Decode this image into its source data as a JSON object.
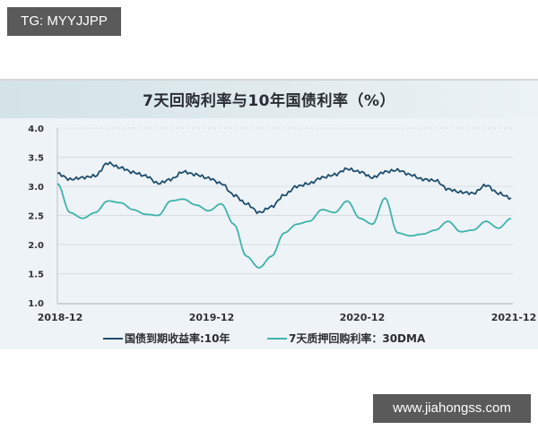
{
  "watermarks": {
    "top": "TG: MYYJJPP",
    "bottom": "www.jiahongss.com"
  },
  "colors": {
    "series_10y": "#1f4e6e",
    "series_7d": "#3fb3aa",
    "panel_bg": "#eef3f7",
    "gridline": "#d6dde3"
  },
  "chart_data": {
    "type": "line",
    "title": "7天回购利率与10年国债利率（%）",
    "xlabel": "",
    "ylabel": "",
    "ylim": [
      1.0,
      4.0
    ],
    "yticks": [
      "4.0",
      "3.5",
      "3.0",
      "2.5",
      "2.0",
      "1.5",
      "1.0"
    ],
    "xticks": [
      "2018-12",
      "2019-12",
      "2020-12",
      "2021-12"
    ],
    "grid": "horizontal",
    "legend_position": "bottom",
    "x": [
      "2018-12",
      "2019-01",
      "2019-02",
      "2019-03",
      "2019-04",
      "2019-05",
      "2019-06",
      "2019-07",
      "2019-08",
      "2019-09",
      "2019-10",
      "2019-11",
      "2019-12",
      "2020-01",
      "2020-02",
      "2020-03",
      "2020-04",
      "2020-05",
      "2020-06",
      "2020-07",
      "2020-08",
      "2020-09",
      "2020-10",
      "2020-11",
      "2020-12",
      "2021-01",
      "2021-02",
      "2021-03",
      "2021-04",
      "2021-05",
      "2021-06",
      "2021-07",
      "2021-08",
      "2021-09",
      "2021-10",
      "2021-11",
      "2021-12"
    ],
    "series": [
      {
        "name": "国债到期收益率:10年",
        "values": [
          3.22,
          3.12,
          3.15,
          3.18,
          3.4,
          3.32,
          3.24,
          3.18,
          3.05,
          3.12,
          3.25,
          3.2,
          3.14,
          3.05,
          2.85,
          2.7,
          2.55,
          2.65,
          2.85,
          3.0,
          3.05,
          3.15,
          3.2,
          3.3,
          3.25,
          3.15,
          3.25,
          3.28,
          3.2,
          3.12,
          3.1,
          2.95,
          2.9,
          2.88,
          3.02,
          2.88,
          2.8
        ]
      },
      {
        "name": "7天质押回购利率：30DMA",
        "values": [
          3.05,
          2.55,
          2.45,
          2.55,
          2.75,
          2.72,
          2.6,
          2.52,
          2.5,
          2.75,
          2.78,
          2.68,
          2.58,
          2.7,
          2.35,
          1.8,
          1.6,
          1.8,
          2.2,
          2.35,
          2.4,
          2.6,
          2.55,
          2.75,
          2.45,
          2.35,
          2.8,
          2.2,
          2.15,
          2.18,
          2.25,
          2.4,
          2.22,
          2.25,
          2.4,
          2.28,
          2.45
        ]
      }
    ]
  },
  "legend": {
    "items": [
      {
        "label": "国债到期收益率:10年"
      },
      {
        "label": "7天质押回购利率：30DMA"
      }
    ]
  }
}
